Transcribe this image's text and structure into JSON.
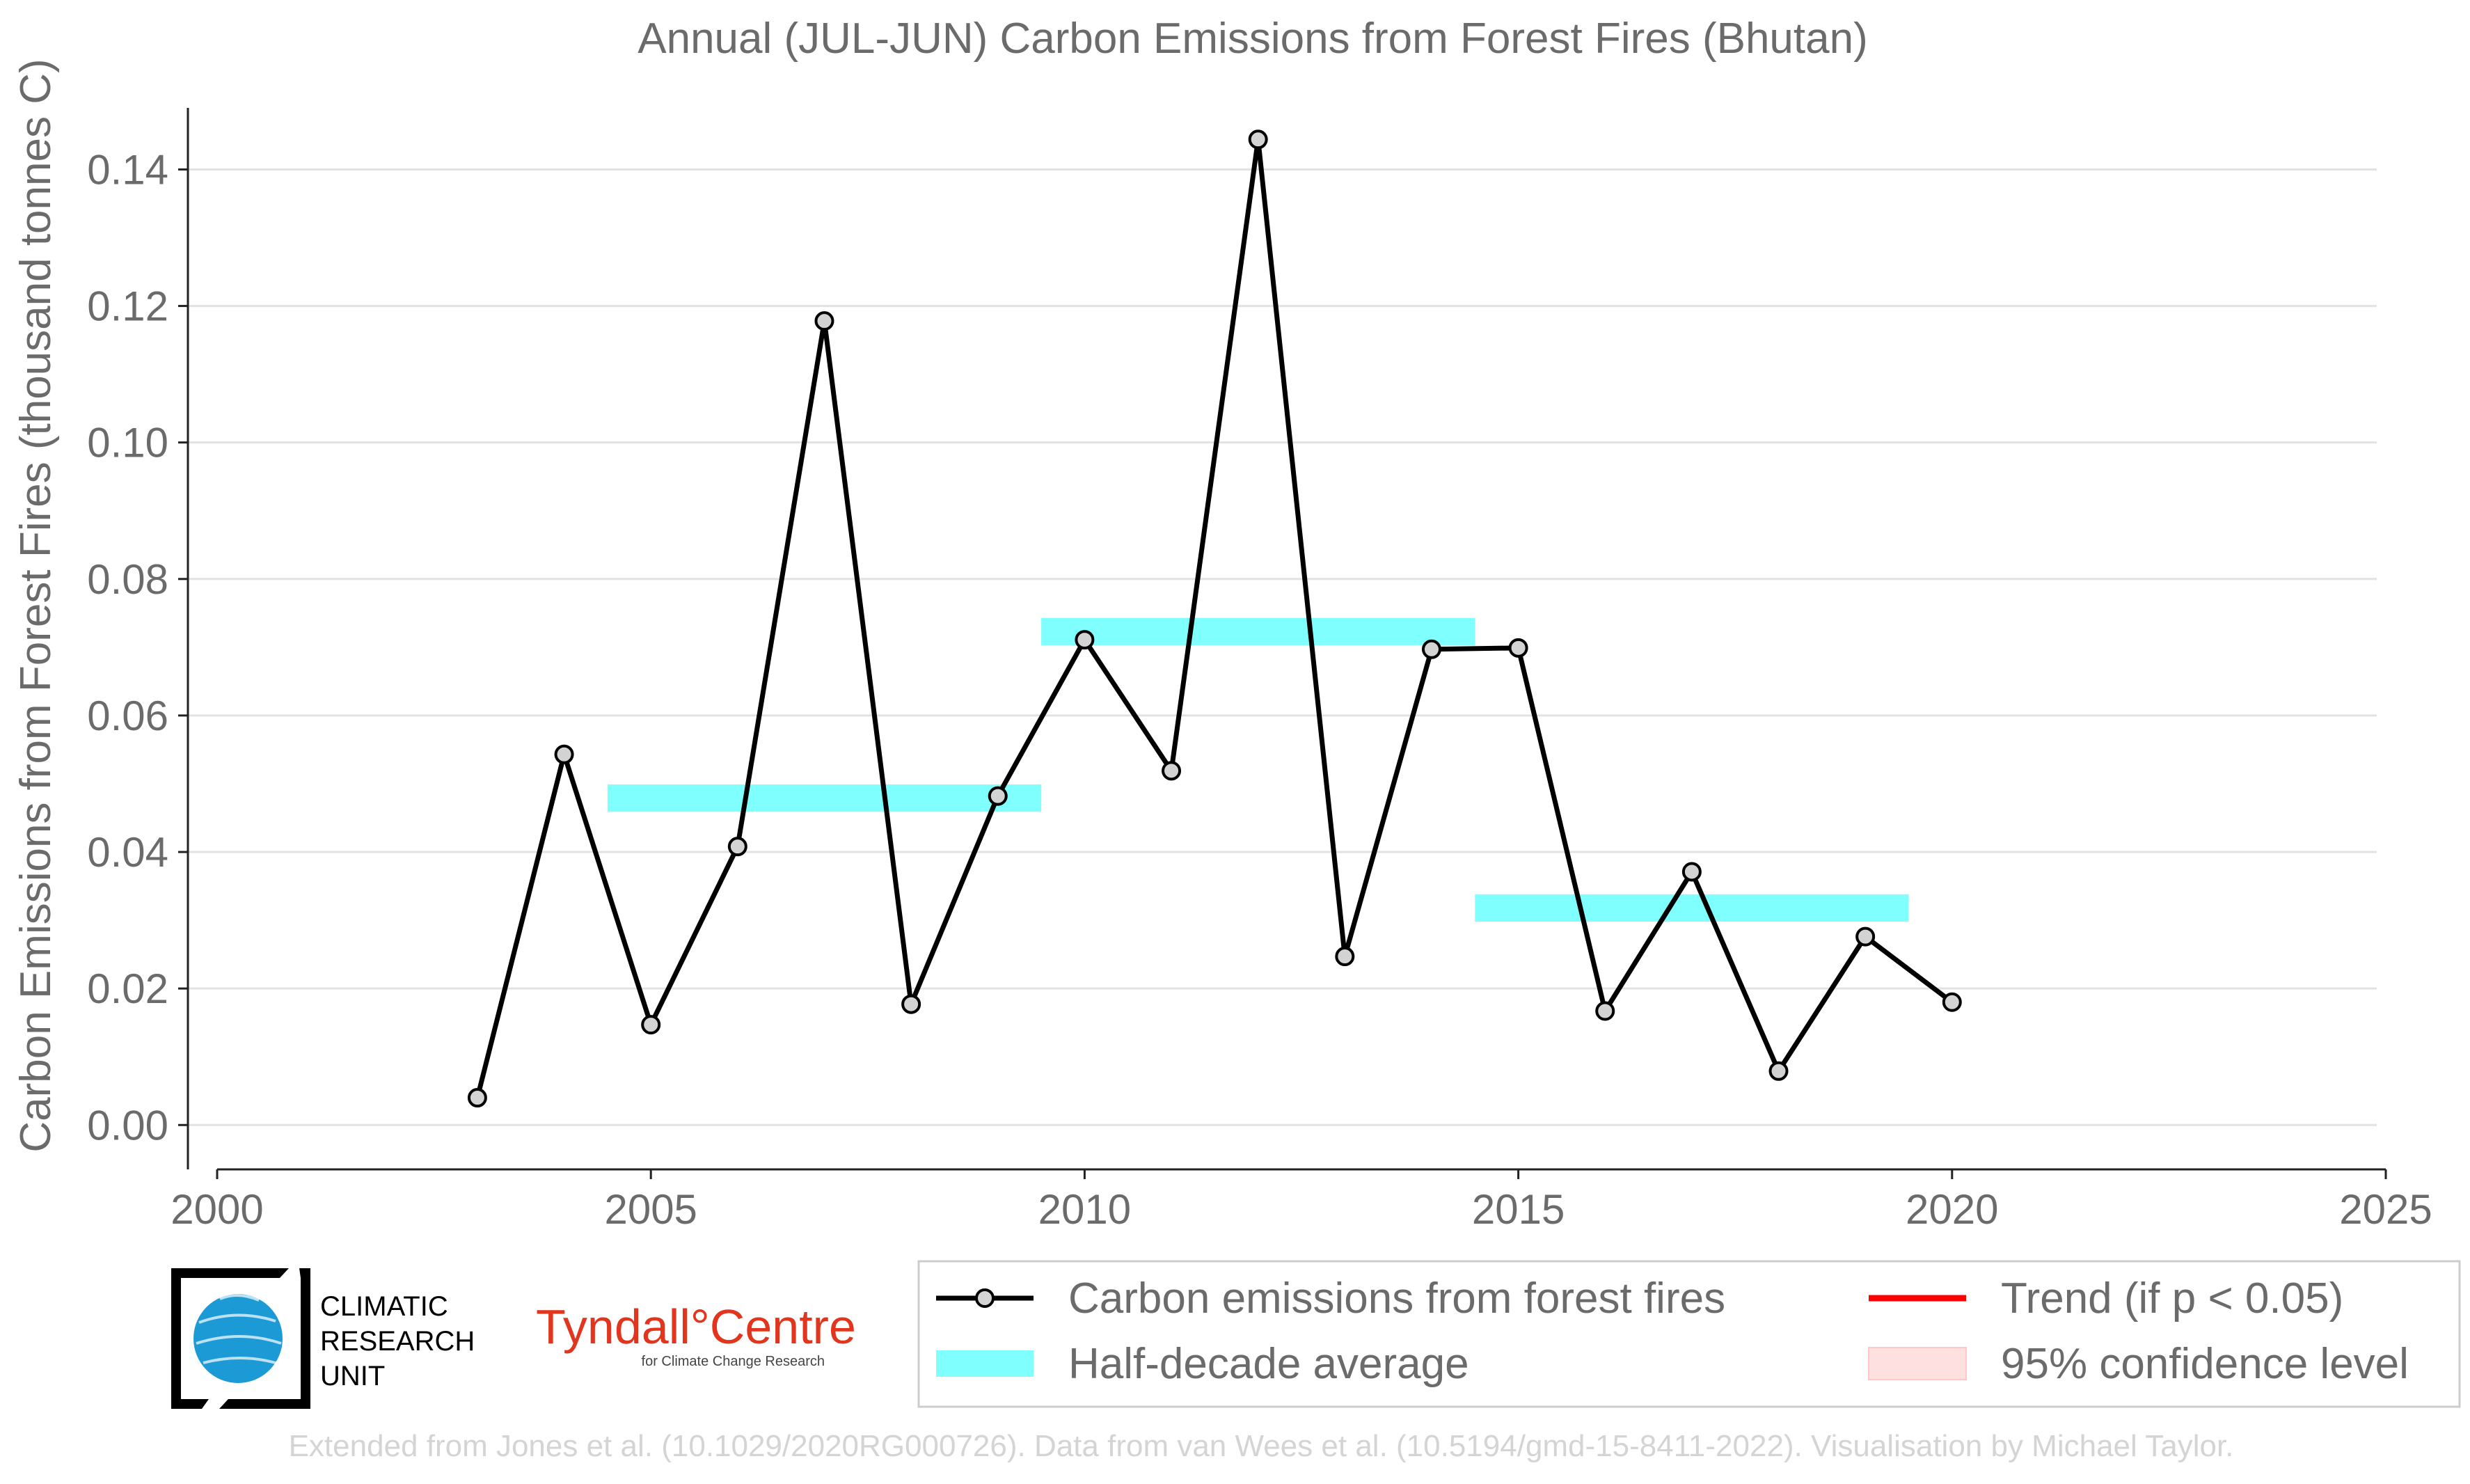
{
  "chart_data": {
    "type": "line",
    "title": "Annual (JUL-JUN) Carbon Emissions from Forest Fires (Bhutan)",
    "xlabel": "",
    "ylabel": "Carbon Emissions from Forest Fires (thousand tonnes C)",
    "xlim": [
      2000,
      2025
    ],
    "ylim": [
      -0.0065,
      0.148
    ],
    "xticks": [
      2000,
      2005,
      2010,
      2015,
      2020,
      2025
    ],
    "yticks": [
      0.0,
      0.02,
      0.04,
      0.06,
      0.08,
      0.1,
      0.12,
      0.14
    ],
    "ytick_labels": [
      "0.00",
      "0.02",
      "0.04",
      "0.06",
      "0.08",
      "0.10",
      "0.12",
      "0.14"
    ],
    "grid": "horizontal",
    "series": [
      {
        "name": "Carbon emissions from forest fires",
        "color": "#000000",
        "marker_fill": "#d3d3d3",
        "x": [
          2003,
          2004,
          2005,
          2006,
          2007,
          2008,
          2009,
          2010,
          2011,
          2012,
          2013,
          2014,
          2015,
          2016,
          2017,
          2018,
          2019,
          2020
        ],
        "y": [
          0.004,
          0.0543,
          0.0147,
          0.0408,
          0.1178,
          0.0177,
          0.0482,
          0.0711,
          0.0519,
          0.1444,
          0.0247,
          0.0697,
          0.0699,
          0.0167,
          0.0371,
          0.0079,
          0.0276,
          0.018
        ]
      }
    ],
    "half_decade_average": {
      "name": "Half-decade average",
      "color": "#80ffff",
      "bands": [
        {
          "x_start": 2004.5,
          "x_end": 2009.5,
          "y_low": 0.0459,
          "y_high": 0.0499
        },
        {
          "x_start": 2009.5,
          "x_end": 2014.5,
          "y_low": 0.0703,
          "y_high": 0.0743
        },
        {
          "x_start": 2014.5,
          "x_end": 2019.5,
          "y_low": 0.0298,
          "y_high": 0.0338
        }
      ]
    },
    "legend": {
      "placement": "bottom-right",
      "entries": [
        {
          "label": "Carbon emissions from forest fires",
          "kind": "line-marker",
          "color": "#000000"
        },
        {
          "label": "Trend (if p < 0.05)",
          "kind": "line",
          "color": "#ff0000"
        },
        {
          "label": "Half-decade average",
          "kind": "band",
          "color": "#80ffff"
        },
        {
          "label": "95% confidence level",
          "kind": "band",
          "color": "#ffe0e0"
        }
      ]
    },
    "caption": "Extended from Jones et al. (10.1029/2020RG000726). Data from van Wees et al. (10.5194/gmd-15-8411-2022). Visualisation by Michael Taylor."
  },
  "logos": {
    "cru": {
      "lines": [
        "CLIMATIC",
        "RESEARCH",
        "UNIT"
      ]
    },
    "tyndall": {
      "name": "Tyndall°Centre",
      "subtitle": "for Climate Change Research"
    }
  }
}
